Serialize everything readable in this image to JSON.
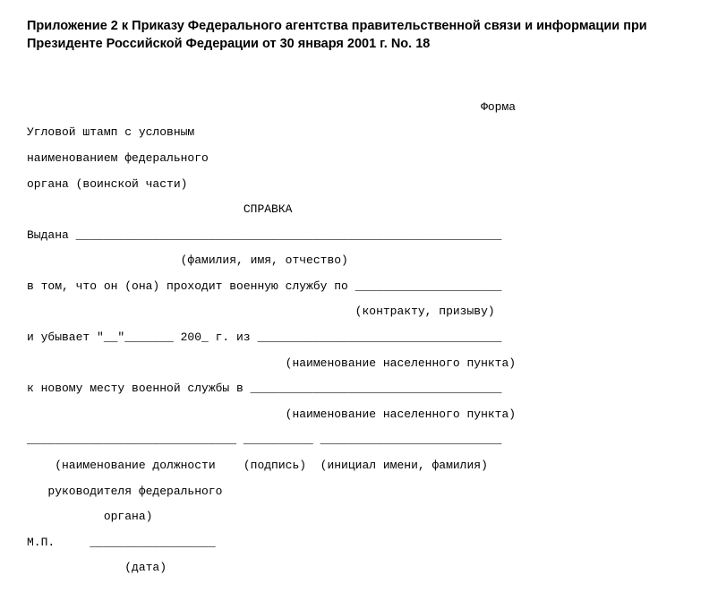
{
  "heading": "Приложение 2 к Приказу Федерального агентства правительственной связи и информации при Президенте Российской Федерации от 30 января 2001 г. No. 18",
  "form": {
    "line01": "                                                                 Форма",
    "line02": "Угловой штамп с условным",
    "line03": "наименованием федерального",
    "line04": "органа (воинской части)",
    "line05": "                               СПРАВКА",
    "line06": "Выдана _____________________________________________________________",
    "line07": "                      (фамилия, имя, отчество)",
    "line08": "в том, что он (она) проходит военную службу по _____________________",
    "line09": "                                               (контракту, призыву)",
    "line10": "и убывает \"__\"_______ 200_ г. из ___________________________________",
    "line11": "                                     (наименование населенного пункта)",
    "line12": "к новому месту военной службы в ____________________________________",
    "line13": "                                     (наименование населенного пункта)",
    "line14": "______________________________ __________ __________________________",
    "line15": "    (наименование должности    (подпись)  (инициал имени, фамилия)",
    "line16": "   руководителя федерального",
    "line17": "           органа)",
    "line18": "М.П.     __________________",
    "line19": "              (дата)"
  }
}
